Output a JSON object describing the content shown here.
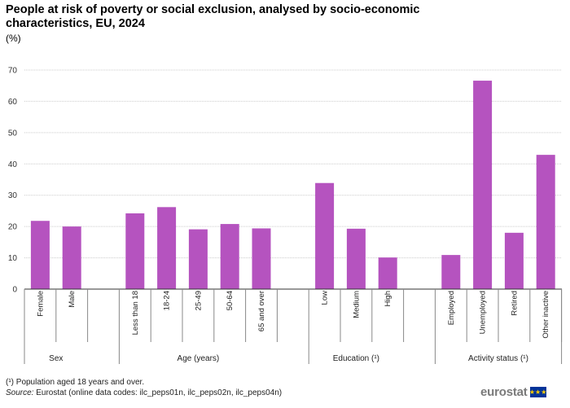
{
  "chart_data": {
    "type": "bar",
    "title": "People at risk of poverty or social exclusion, analysed by socio-economic characteristics, EU, 2024",
    "unit": "(%)",
    "ylim": [
      0,
      70
    ],
    "yticks": [
      0,
      10,
      20,
      30,
      40,
      50,
      60,
      70
    ],
    "grid": true,
    "bar_color": "#b553bf",
    "groups": [
      {
        "label": "Sex",
        "categories": [
          "Female",
          "Male"
        ],
        "values": [
          21.8,
          20.0
        ]
      },
      {
        "label": "Age (years)",
        "categories": [
          "Less than 18",
          "18-24",
          "25-49",
          "50-64",
          "65 and over"
        ],
        "values": [
          24.2,
          26.2,
          19.1,
          20.8,
          19.4
        ]
      },
      {
        "label": "Education (¹)",
        "categories": [
          "Low",
          "Medium",
          "High"
        ],
        "values": [
          33.9,
          19.3,
          10.1
        ]
      },
      {
        "label": "Activity status (¹)",
        "categories": [
          "Employed",
          "Unemployed",
          "Retired",
          "Other inactive"
        ],
        "values": [
          10.9,
          66.6,
          18.0,
          42.9
        ]
      }
    ]
  },
  "footnote": "(¹) Population aged 18 years and over.",
  "source_label": "Source:",
  "source_text": " Eurostat (online data codes: ilc_peps01n, ilc_peps02n, ilc_peps04n)",
  "logo_text": "eurostat",
  "flag_stars": "★★★",
  "colors": {
    "bar": "#b553bf",
    "grid": "#cccccc",
    "axis": "#333333",
    "flag": "#003399"
  }
}
